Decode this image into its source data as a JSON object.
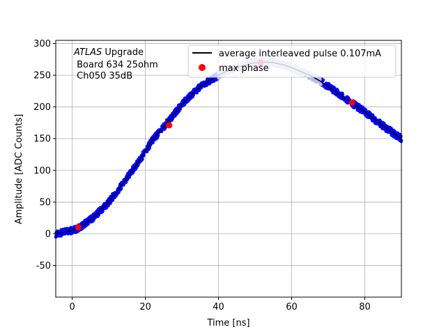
{
  "chart_data": {
    "type": "scatter",
    "xlabel": "Time [ns]",
    "ylabel": "Amplitude [ADC Counts]",
    "xlim": [
      -4.5,
      90
    ],
    "ylim": [
      -100,
      305
    ],
    "xticks": [
      0,
      20,
      40,
      60,
      80
    ],
    "yticks": [
      -50,
      0,
      50,
      100,
      150,
      200,
      250,
      300
    ],
    "grid": true,
    "legend_position": "top-right",
    "annotation": {
      "lines": [
        {
          "italic": "ATLAS",
          "rest": " Upgrade"
        },
        {
          "italic": "",
          "rest": " Board 634 25ohm"
        },
        {
          "italic": "",
          "rest": " Ch050 35dB"
        }
      ]
    },
    "series": [
      {
        "name": "average interleaved pulse 0.107mA",
        "kind": "line",
        "color": "#000000",
        "x": [
          -4.5,
          0,
          2,
          5,
          8,
          10,
          12,
          15,
          18,
          20,
          22,
          25,
          28,
          30,
          32,
          35,
          38,
          40,
          42,
          45,
          48,
          50,
          52,
          55,
          58,
          60,
          62,
          65,
          68,
          70,
          72,
          75,
          78,
          80,
          82,
          85,
          88,
          90
        ],
        "y": [
          0,
          5,
          10,
          22,
          38,
          50,
          65,
          88,
          112,
          130,
          148,
          168,
          190,
          204,
          216,
          232,
          243,
          250,
          256,
          262,
          267,
          270,
          271,
          270,
          266,
          262,
          257,
          250,
          240,
          232,
          224,
          212,
          200,
          192,
          183,
          170,
          158,
          150
        ]
      },
      {
        "name": "",
        "kind": "scatter",
        "color": "#0000ff",
        "x_range": [
          -4.5,
          90
        ],
        "note_style": "raw samples scattered around average pulse"
      },
      {
        "name": "",
        "kind": "scatter",
        "color": "#bbbbee",
        "x_range": [
          40,
          68
        ]
      },
      {
        "name": "max phase",
        "kind": "scatter",
        "color": "#ff0000",
        "x": [
          1.7,
          26.5,
          51.5,
          76.5
        ],
        "y": [
          10,
          171,
          270,
          207
        ]
      }
    ]
  }
}
